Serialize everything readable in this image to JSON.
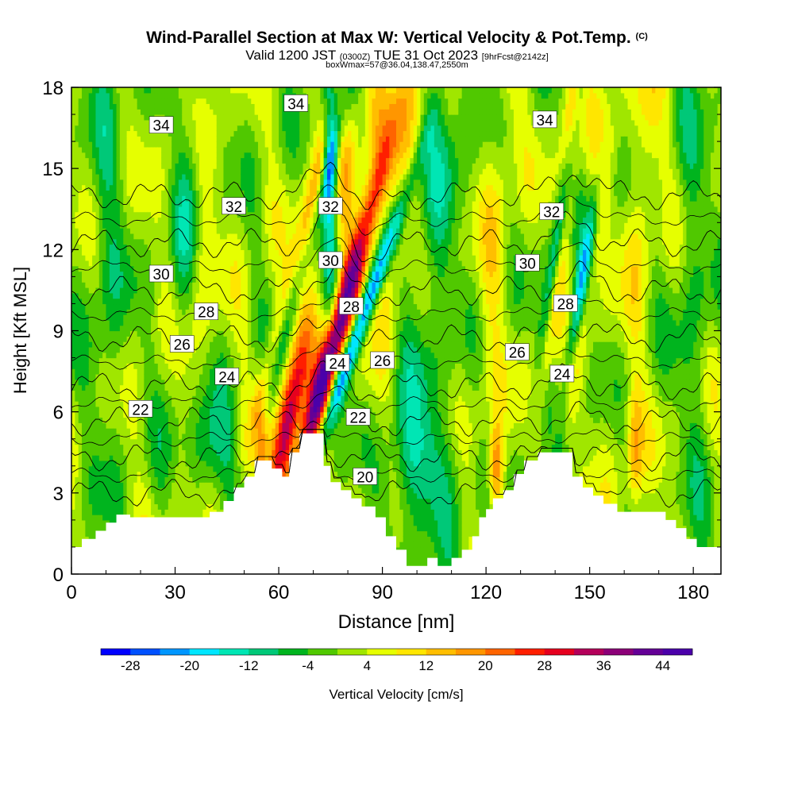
{
  "header": {
    "title_main": "Wind-Parallel Section at Max W: Vertical Velocity & Pot.Temp.",
    "title_mark": "(C)",
    "valid_prefix": "Valid 1200 JST",
    "valid_utc": "(0300Z)",
    "valid_date": "TUE 31 Oct 2023",
    "forecast": "[9hrFcst@2142z]",
    "box_info": "boxWmax=57@36.04,138.47,2550m"
  },
  "chart_data": {
    "type": "heatmap",
    "xlabel": "Distance [nm]",
    "ylabel": "Height [Kft MSL]",
    "xlim": [
      0,
      188
    ],
    "ylim": [
      0,
      18
    ],
    "x_ticks": [
      0,
      30,
      60,
      90,
      120,
      150,
      180
    ],
    "y_ticks": [
      0,
      3,
      6,
      9,
      12,
      15,
      18
    ],
    "colorbar": {
      "label": "Vertical Velocity [cm/s]",
      "min": -32,
      "max": 48,
      "step": 4,
      "tick_labels": [
        -28,
        -20,
        -12,
        -4,
        4,
        12,
        20,
        28,
        36,
        44
      ],
      "colors": [
        "#0000ff",
        "#0050ff",
        "#0096ff",
        "#00e6ff",
        "#00e6b4",
        "#00c878",
        "#00b41e",
        "#50c800",
        "#a0e600",
        "#e6ff00",
        "#ffe600",
        "#ffbe00",
        "#ff9600",
        "#ff6400",
        "#ff1e00",
        "#e6001e",
        "#b4005a",
        "#8c0078",
        "#640096",
        "#4b00aa"
      ]
    },
    "theta_contour_labels": [
      {
        "value": "34",
        "x": 26,
        "y": 16.6
      },
      {
        "value": "34",
        "x": 65,
        "y": 17.4
      },
      {
        "value": "34",
        "x": 137,
        "y": 16.8
      },
      {
        "value": "32",
        "x": 47,
        "y": 13.6
      },
      {
        "value": "32",
        "x": 75,
        "y": 13.6
      },
      {
        "value": "32",
        "x": 139,
        "y": 13.4
      },
      {
        "value": "30",
        "x": 26,
        "y": 11.1
      },
      {
        "value": "30",
        "x": 75,
        "y": 11.6
      },
      {
        "value": "30",
        "x": 132,
        "y": 11.5
      },
      {
        "value": "28",
        "x": 39,
        "y": 9.7
      },
      {
        "value": "28",
        "x": 81,
        "y": 9.9
      },
      {
        "value": "28",
        "x": 143,
        "y": 10.0
      },
      {
        "value": "26",
        "x": 32,
        "y": 8.5
      },
      {
        "value": "26",
        "x": 90,
        "y": 7.9
      },
      {
        "value": "26",
        "x": 129,
        "y": 8.2
      },
      {
        "value": "24",
        "x": 45,
        "y": 7.3
      },
      {
        "value": "24",
        "x": 77,
        "y": 7.8
      },
      {
        "value": "24",
        "x": 142,
        "y": 7.4
      },
      {
        "value": "22",
        "x": 20,
        "y": 6.1
      },
      {
        "value": "22",
        "x": 83,
        "y": 5.8
      },
      {
        "value": "20",
        "x": 85,
        "y": 3.6
      }
    ],
    "terrain": [
      [
        0,
        1
      ],
      [
        3,
        1
      ],
      [
        3,
        1.3
      ],
      [
        7,
        1.3
      ],
      [
        7,
        1.6
      ],
      [
        10,
        1.6
      ],
      [
        10,
        1.9
      ],
      [
        13,
        1.9
      ],
      [
        13,
        2.2
      ],
      [
        17,
        2.2
      ],
      [
        17,
        2.1
      ],
      [
        40,
        2.1
      ],
      [
        40,
        2.3
      ],
      [
        44,
        2.3
      ],
      [
        44,
        2.7
      ],
      [
        47,
        2.7
      ],
      [
        47,
        3.2
      ],
      [
        50,
        3.2
      ],
      [
        50,
        3.6
      ],
      [
        53,
        3.6
      ],
      [
        53,
        4.2
      ],
      [
        58,
        4.2
      ],
      [
        58,
        3.9
      ],
      [
        61,
        3.9
      ],
      [
        61,
        3.6
      ],
      [
        63,
        3.6
      ],
      [
        63,
        4.5
      ],
      [
        66,
        4.5
      ],
      [
        66,
        5.2
      ],
      [
        73,
        5.2
      ],
      [
        73,
        4.0
      ],
      [
        75,
        4.0
      ],
      [
        75,
        3.4
      ],
      [
        78,
        3.4
      ],
      [
        78,
        3.1
      ],
      [
        81,
        3.1
      ],
      [
        81,
        2.8
      ],
      [
        84,
        2.8
      ],
      [
        84,
        2.5
      ],
      [
        88,
        2.5
      ],
      [
        88,
        2.1
      ],
      [
        91,
        2.1
      ],
      [
        91,
        1.4
      ],
      [
        94,
        1.4
      ],
      [
        94,
        0.9
      ],
      [
        97,
        0.9
      ],
      [
        97,
        0.3
      ],
      [
        103,
        0.3
      ],
      [
        103,
        0.6
      ],
      [
        106,
        0.6
      ],
      [
        106,
        0.3
      ],
      [
        110,
        0.3
      ],
      [
        110,
        0.6
      ],
      [
        113,
        0.6
      ],
      [
        113,
        0.9
      ],
      [
        116,
        0.9
      ],
      [
        116,
        1.4
      ],
      [
        118,
        1.4
      ],
      [
        118,
        2.1
      ],
      [
        120,
        2.1
      ],
      [
        120,
        2.4
      ],
      [
        122,
        2.4
      ],
      [
        122,
        2.8
      ],
      [
        125,
        2.8
      ],
      [
        125,
        3.1
      ],
      [
        128,
        3.1
      ],
      [
        128,
        3.7
      ],
      [
        131,
        3.7
      ],
      [
        131,
        4.2
      ],
      [
        135,
        4.2
      ],
      [
        135,
        4.5
      ],
      [
        145,
        4.5
      ],
      [
        145,
        3.6
      ],
      [
        148,
        3.6
      ],
      [
        148,
        3.2
      ],
      [
        151,
        3.2
      ],
      [
        151,
        2.9
      ],
      [
        154,
        2.9
      ],
      [
        154,
        2.6
      ],
      [
        158,
        2.6
      ],
      [
        158,
        2.3
      ],
      [
        172,
        2.3
      ],
      [
        172,
        2.0
      ],
      [
        175,
        2.0
      ],
      [
        175,
        1.7
      ],
      [
        178,
        1.7
      ],
      [
        178,
        1.3
      ],
      [
        181,
        1.3
      ],
      [
        181,
        1.0
      ],
      [
        188,
        1.0
      ]
    ],
    "plumes": [
      {
        "x": 77,
        "y": 9.0,
        "sx": 2.4,
        "sy": 4.5,
        "tilt": 0.35,
        "w": 44
      },
      {
        "x": 63,
        "y": 5.8,
        "sx": 2.2,
        "sy": 2.6,
        "tilt": 0.25,
        "w": 32
      },
      {
        "x": 83,
        "y": 9.0,
        "sx": 1.8,
        "sy": 4.2,
        "tilt": 0.45,
        "w": -28
      },
      {
        "x": 75,
        "y": 15.5,
        "sx": 1.6,
        "sy": 3.8,
        "tilt": 0.0,
        "w": -26
      },
      {
        "x": 71,
        "y": 14.5,
        "sx": 1.8,
        "sy": 4.0,
        "tilt": 0.2,
        "w": 16
      },
      {
        "x": 78,
        "y": 14.0,
        "sx": 2.5,
        "sy": 4.5,
        "tilt": 0.15,
        "w": 8
      },
      {
        "x": 66,
        "y": 11.0,
        "sx": 1.8,
        "sy": 5.0,
        "tilt": 0.35,
        "w": -14
      },
      {
        "x": 58,
        "y": 8.0,
        "sx": 1.8,
        "sy": 3.0,
        "tilt": 0.3,
        "w": 14
      },
      {
        "x": 146,
        "y": 9.5,
        "sx": 1.5,
        "sy": 3.8,
        "tilt": 0.22,
        "w": -28
      },
      {
        "x": 142,
        "y": 13.5,
        "sx": 1.4,
        "sy": 4.5,
        "tilt": 0.18,
        "w": -16
      },
      {
        "x": 145,
        "y": 17.0,
        "sx": 1.6,
        "sy": 2.5,
        "tilt": 0.1,
        "w": 18
      },
      {
        "x": 141,
        "y": 6.0,
        "sx": 1.4,
        "sy": 1.8,
        "tilt": 0.2,
        "w": 18
      },
      {
        "x": 139,
        "y": 9.5,
        "sx": 1.3,
        "sy": 2.5,
        "tilt": 0.2,
        "w": 12
      },
      {
        "x": 151,
        "y": 12.5,
        "sx": 2.0,
        "sy": 5.0,
        "tilt": 0.2,
        "w": 10
      },
      {
        "x": 123,
        "y": 3.8,
        "sx": 1.6,
        "sy": 1.3,
        "tilt": 0.0,
        "w": 22
      },
      {
        "x": 163,
        "y": 4.6,
        "sx": 1.6,
        "sy": 1.6,
        "tilt": 0.0,
        "w": 14
      },
      {
        "x": 40,
        "y": 4.5,
        "sx": 5.0,
        "sy": 1.5,
        "tilt": 0.0,
        "w": -12
      },
      {
        "x": 104,
        "y": 3.8,
        "sx": 10.0,
        "sy": 1.6,
        "tilt": 0.0,
        "w": -10
      },
      {
        "x": 55,
        "y": 4.8,
        "sx": 1.4,
        "sy": 1.3,
        "tilt": 0.0,
        "w": 12
      },
      {
        "x": 34,
        "y": 13.5,
        "sx": 3.0,
        "sy": 5.0,
        "tilt": 0.1,
        "w": -9
      },
      {
        "x": 37,
        "y": 11.5,
        "sx": 3.0,
        "sy": 6.0,
        "tilt": 0.1,
        "w": 6
      },
      {
        "x": 105,
        "y": 12.0,
        "sx": 5.0,
        "sy": 8.0,
        "tilt": 0.15,
        "w": -8
      },
      {
        "x": 95,
        "y": 14.0,
        "sx": 3.0,
        "sy": 6.0,
        "tilt": 0.15,
        "w": 7
      },
      {
        "x": 123,
        "y": 13.0,
        "sx": 3.0,
        "sy": 7.0,
        "tilt": 0.1,
        "w": 6
      },
      {
        "x": 10,
        "y": 12.0,
        "sx": 4.0,
        "sy": 6.0,
        "tilt": 0.0,
        "w": -7
      },
      {
        "x": 180,
        "y": 11.0,
        "sx": 4.0,
        "sy": 7.0,
        "tilt": 0.0,
        "w": -6
      },
      {
        "x": 166,
        "y": 15.0,
        "sx": 3.0,
        "sy": 5.0,
        "tilt": 0.1,
        "w": 7
      },
      {
        "x": 88,
        "y": 17.0,
        "sx": 3.0,
        "sy": 2.0,
        "tilt": 0.0,
        "w": 9
      }
    ]
  }
}
